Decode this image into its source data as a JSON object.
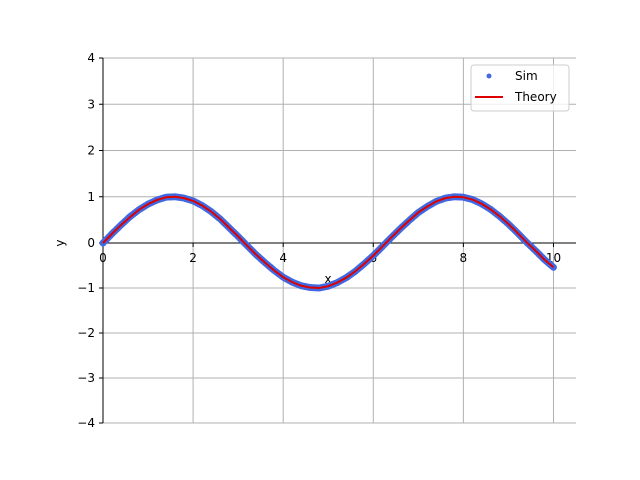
{
  "chart_data": {
    "type": "line",
    "title": "",
    "xlabel": "x",
    "ylabel": "y",
    "xlim": [
      0,
      10.5
    ],
    "ylim": [
      -4,
      4
    ],
    "xticks": [
      0,
      2,
      4,
      6,
      8,
      10
    ],
    "yticks": [
      -4,
      -3,
      -2,
      -1,
      0,
      1,
      2,
      3,
      4
    ],
    "xtick_labels": [
      "0",
      "2",
      "4",
      "6",
      "8",
      "10"
    ],
    "ytick_labels": [
      "−4",
      "−3",
      "−2",
      "−1",
      "0",
      "1",
      "2",
      "3",
      "4"
    ],
    "grid": true,
    "legend_position": "top-right",
    "series": [
      {
        "name": "Sim",
        "kind": "scatter",
        "color": "#4169e1",
        "x": [
          0.0,
          0.2,
          0.4,
          0.6,
          0.8,
          1.0,
          1.2,
          1.4,
          1.6,
          1.8,
          2.0,
          2.2,
          2.4,
          2.6,
          2.8,
          3.0,
          3.2,
          3.4,
          3.6,
          3.8,
          4.0,
          4.2,
          4.4,
          4.6,
          4.8,
          5.0,
          5.2,
          5.4,
          5.6,
          5.8,
          6.0,
          6.2,
          6.4,
          6.6,
          6.8,
          7.0,
          7.2,
          7.4,
          7.6,
          7.8,
          8.0,
          8.2,
          8.4,
          8.6,
          8.8,
          9.0,
          9.2,
          9.4,
          9.6,
          9.8,
          10.0
        ],
        "y": [
          0.0,
          0.2,
          0.39,
          0.57,
          0.72,
          0.84,
          0.93,
          0.99,
          1.0,
          0.97,
          0.91,
          0.81,
          0.68,
          0.52,
          0.33,
          0.14,
          -0.06,
          -0.26,
          -0.44,
          -0.61,
          -0.76,
          -0.87,
          -0.95,
          -0.99,
          -1.0,
          -0.96,
          -0.88,
          -0.77,
          -0.63,
          -0.46,
          -0.28,
          -0.08,
          0.12,
          0.31,
          0.49,
          0.66,
          0.79,
          0.9,
          0.97,
          1.0,
          0.99,
          0.94,
          0.85,
          0.73,
          0.58,
          0.41,
          0.22,
          0.02,
          -0.17,
          -0.37,
          -0.54
        ]
      },
      {
        "name": "Theory",
        "kind": "line",
        "color": "#dd0000",
        "x": [
          0.0,
          0.2,
          0.4,
          0.6,
          0.8,
          1.0,
          1.2,
          1.4,
          1.6,
          1.8,
          2.0,
          2.2,
          2.4,
          2.6,
          2.8,
          3.0,
          3.2,
          3.4,
          3.6,
          3.8,
          4.0,
          4.2,
          4.4,
          4.6,
          4.8,
          5.0,
          5.2,
          5.4,
          5.6,
          5.8,
          6.0,
          6.2,
          6.4,
          6.6,
          6.8,
          7.0,
          7.2,
          7.4,
          7.6,
          7.8,
          8.0,
          8.2,
          8.4,
          8.6,
          8.8,
          9.0,
          9.2,
          9.4,
          9.6,
          9.8,
          10.0
        ],
        "y": [
          0.0,
          0.2,
          0.39,
          0.56,
          0.72,
          0.84,
          0.93,
          0.99,
          1.0,
          0.97,
          0.91,
          0.81,
          0.68,
          0.52,
          0.33,
          0.14,
          -0.06,
          -0.26,
          -0.44,
          -0.61,
          -0.76,
          -0.87,
          -0.95,
          -0.99,
          -1.0,
          -0.96,
          -0.88,
          -0.77,
          -0.63,
          -0.46,
          -0.28,
          -0.08,
          0.12,
          0.31,
          0.49,
          0.66,
          0.79,
          0.9,
          0.97,
          1.0,
          0.99,
          0.94,
          0.85,
          0.73,
          0.58,
          0.41,
          0.22,
          0.02,
          -0.17,
          -0.37,
          -0.54
        ]
      }
    ]
  }
}
